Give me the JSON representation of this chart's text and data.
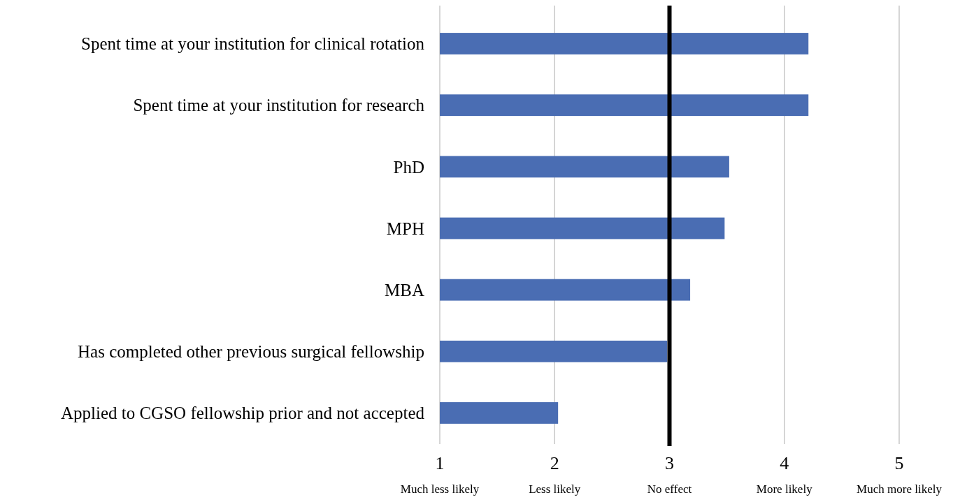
{
  "chart_data": {
    "type": "bar",
    "orientation": "horizontal",
    "categories": [
      "Spent time at your institution for clinical rotation",
      "Spent time at your institution for research",
      "PhD",
      "MPH",
      "MBA",
      "Has completed other previous surgical fellowship",
      "Applied to CGSO fellowship prior and not accepted"
    ],
    "values": [
      4.21,
      4.21,
      3.52,
      3.48,
      3.18,
      2.98,
      2.03
    ],
    "color": "#4a6db3",
    "xlim": [
      1,
      5
    ],
    "xticks": [
      {
        "value": 1,
        "label": "1\nMuch less likely"
      },
      {
        "value": 2,
        "label": "2\nLess likely"
      },
      {
        "value": 3,
        "label": "3\nNo effect"
      },
      {
        "value": 4,
        "label": "4\nMore likely"
      },
      {
        "value": 5,
        "label": "5\nMuch more likely"
      }
    ],
    "grid": "x",
    "ref_lines": [
      {
        "axis": "x",
        "value": 3,
        "color": "#000000"
      }
    ]
  }
}
